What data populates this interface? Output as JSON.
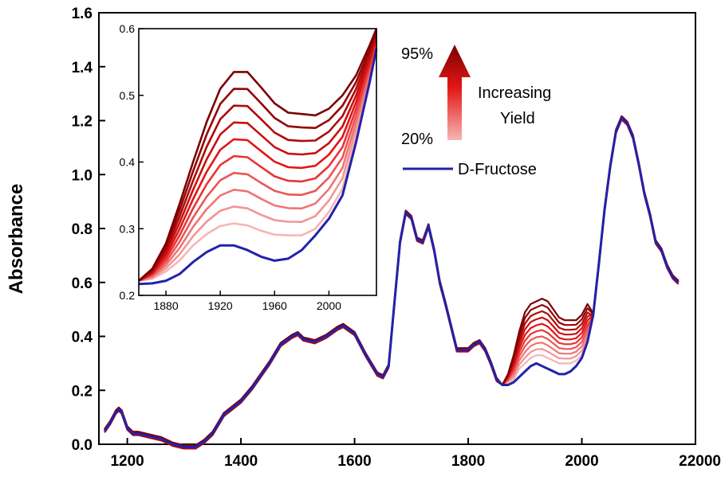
{
  "chart_data": [
    {
      "type": "line",
      "title": "",
      "xlabel": "",
      "ylabel": "Absorbance",
      "xlim": [
        1150,
        2200
      ],
      "ylim": [
        0,
        1.6
      ],
      "xticks": [
        "1200",
        "1400",
        "1600",
        "1800",
        "2000",
        "22000"
      ],
      "yticks": [
        "0.0",
        "0.2",
        "0.4",
        "0.6",
        "0.8",
        "1.0",
        "1.2",
        "1.4",
        "1.6"
      ],
      "grid": false,
      "legend": "inset, top-right",
      "colors": {
        "fructose": "#2222aa",
        "yield_low": "#f4b0b0",
        "yield_high": "#8b0000"
      },
      "fructose": {
        "name": "D-Fructose",
        "x": [
          1160,
          1170,
          1180,
          1185,
          1190,
          1200,
          1210,
          1220,
          1240,
          1260,
          1280,
          1300,
          1320,
          1335,
          1350,
          1370,
          1400,
          1420,
          1450,
          1470,
          1490,
          1500,
          1510,
          1530,
          1550,
          1570,
          1580,
          1600,
          1620,
          1640,
          1650,
          1660,
          1670,
          1680,
          1690,
          1700,
          1710,
          1720,
          1730,
          1740,
          1750,
          1760,
          1780,
          1800,
          1810,
          1820,
          1830,
          1840,
          1850,
          1860,
          1870,
          1880,
          1890,
          1900,
          1910,
          1920,
          1930,
          1940,
          1950,
          1960,
          1970,
          1980,
          1990,
          2000,
          2010,
          2020,
          2030,
          2040,
          2050,
          2060,
          2070,
          2080,
          2090,
          2100,
          2110,
          2120,
          2130,
          2140,
          2150,
          2160,
          2170
        ],
        "y": [
          0.05,
          0.08,
          0.12,
          0.13,
          0.12,
          0.06,
          0.04,
          0.04,
          0.03,
          0.02,
          0.0,
          -0.01,
          -0.01,
          0.01,
          0.04,
          0.11,
          0.16,
          0.21,
          0.3,
          0.37,
          0.4,
          0.41,
          0.39,
          0.38,
          0.4,
          0.43,
          0.44,
          0.41,
          0.33,
          0.26,
          0.25,
          0.29,
          0.52,
          0.75,
          0.86,
          0.84,
          0.76,
          0.75,
          0.81,
          0.72,
          0.6,
          0.52,
          0.35,
          0.35,
          0.37,
          0.38,
          0.35,
          0.3,
          0.24,
          0.22,
          0.22,
          0.23,
          0.25,
          0.27,
          0.29,
          0.3,
          0.29,
          0.28,
          0.27,
          0.26,
          0.26,
          0.27,
          0.29,
          0.32,
          0.38,
          0.48,
          0.67,
          0.87,
          1.03,
          1.16,
          1.21,
          1.19,
          1.14,
          1.04,
          0.93,
          0.85,
          0.75,
          0.72,
          0.66,
          0.62,
          0.6
        ]
      },
      "yield_series": {
        "count": 10,
        "x": [
          1860,
          1870,
          1880,
          1890,
          1900,
          1910,
          1920,
          1930,
          1940,
          1950,
          1960,
          1970,
          1980,
          1990,
          2000,
          2010
        ],
        "y_min": [
          0.22,
          0.23,
          0.24,
          0.28,
          0.3,
          0.32,
          0.33,
          0.33,
          0.32,
          0.31,
          0.3,
          0.3,
          0.3,
          0.31,
          0.33,
          0.38
        ],
        "y_max": [
          0.22,
          0.26,
          0.33,
          0.42,
          0.49,
          0.52,
          0.53,
          0.54,
          0.53,
          0.5,
          0.47,
          0.46,
          0.46,
          0.46,
          0.48,
          0.52
        ]
      }
    },
    {
      "type": "line",
      "title": "",
      "xlim": [
        1860,
        2035
      ],
      "ylim": [
        0.2,
        0.6
      ],
      "xticks": [
        "1880",
        "1920",
        "1960",
        "2000"
      ],
      "yticks": [
        "0.2",
        "0.3",
        "0.4",
        "0.5",
        "0.6"
      ],
      "fructose": {
        "x": [
          1860,
          1870,
          1880,
          1890,
          1900,
          1910,
          1920,
          1930,
          1940,
          1950,
          1960,
          1970,
          1980,
          1990,
          2000,
          2010,
          2020,
          2030,
          2035
        ],
        "y": [
          0.217,
          0.218,
          0.222,
          0.232,
          0.25,
          0.265,
          0.275,
          0.275,
          0.268,
          0.258,
          0.252,
          0.255,
          0.268,
          0.29,
          0.315,
          0.35,
          0.43,
          0.52,
          0.57
        ]
      },
      "yield_series": {
        "count": 10,
        "x": [
          1860,
          1870,
          1880,
          1890,
          1900,
          1910,
          1920,
          1930,
          1940,
          1950,
          1960,
          1970,
          1980,
          1990,
          2000,
          2010,
          2020,
          2030,
          2035
        ],
        "y_min": [
          0.222,
          0.225,
          0.236,
          0.252,
          0.275,
          0.292,
          0.304,
          0.308,
          0.305,
          0.297,
          0.291,
          0.29,
          0.29,
          0.3,
          0.325,
          0.36,
          0.44,
          0.52,
          0.57
        ],
        "y_max": [
          0.222,
          0.24,
          0.278,
          0.337,
          0.4,
          0.46,
          0.51,
          0.535,
          0.535,
          0.512,
          0.488,
          0.474,
          0.472,
          0.47,
          0.48,
          0.5,
          0.53,
          0.575,
          0.6
        ]
      }
    }
  ],
  "legend": {
    "arrow_top": "95%",
    "arrow_bottom": "20%",
    "arrow_text_1": "Increasing",
    "arrow_text_2": "Yield",
    "fructose_label": "D-Fructose"
  }
}
